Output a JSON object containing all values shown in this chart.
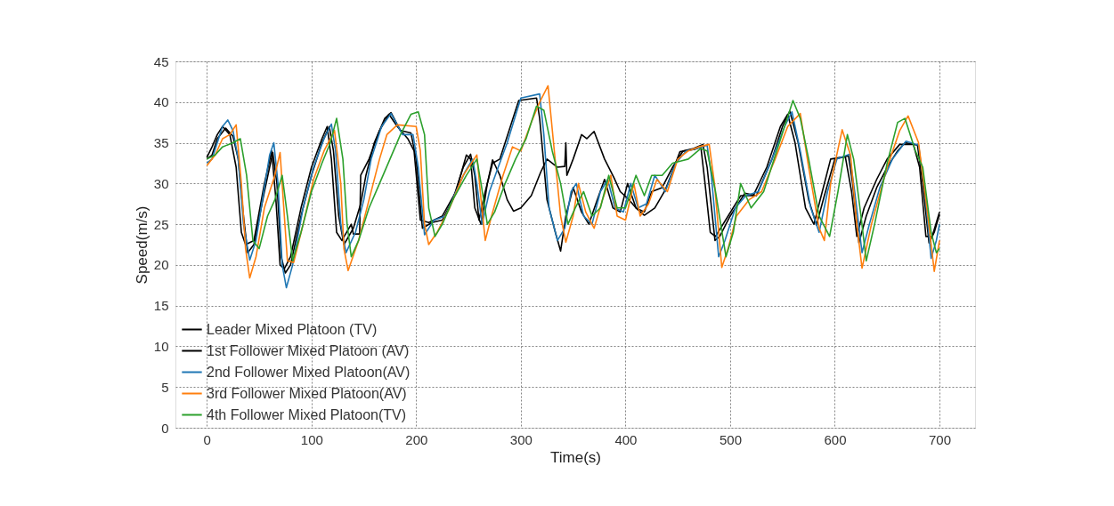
{
  "chart_data": {
    "type": "line",
    "xlabel": "Time(s)",
    "ylabel": "Speed(m/s)",
    "xlim": [
      -30,
      734
    ],
    "ylim": [
      0,
      45
    ],
    "xticks": [
      0,
      100,
      200,
      300,
      400,
      500,
      600,
      700
    ],
    "yticks": [
      0,
      5,
      10,
      15,
      20,
      25,
      30,
      35,
      40,
      45
    ],
    "grid": true,
    "legend": "bottom left",
    "line_style": "solid",
    "series": [
      {
        "name": "Leader Mixed Platoon (TV)",
        "color": "#000000",
        "x": [
          0,
          5,
          10,
          15,
          22,
          28,
          33,
          37,
          45,
          55,
          62,
          66,
          70,
          74,
          80,
          90,
          100,
          110,
          115,
          119,
          124,
          129,
          138,
          140,
          146,
          147,
          155,
          165,
          174,
          182,
          192,
          198,
          204,
          212,
          225,
          238,
          248,
          252,
          256,
          262,
          268,
          273,
          280,
          287,
          293,
          300,
          310,
          319,
          325,
          335,
          342,
          343,
          344,
          350,
          358,
          363,
          370,
          380,
          389,
          395,
          402,
          410,
          418,
          428,
          438,
          445,
          452,
          466,
          472,
          476,
          481,
          486,
          498,
          510,
          522,
          535,
          548,
          555,
          562,
          572,
          580,
          588,
          596,
          610,
          616,
          621,
          628,
          640,
          650,
          662,
          675,
          681,
          687,
          693,
          700
        ],
        "values": [
          33.2,
          34.5,
          36,
          37,
          36,
          32,
          24,
          22.5,
          23,
          30,
          34,
          28,
          20,
          19.5,
          21,
          27,
          32,
          35.5,
          37,
          33,
          24,
          23,
          25,
          23.8,
          23.8,
          31,
          33,
          36.5,
          38.5,
          37,
          35.5,
          34,
          25.5,
          25.2,
          26,
          29,
          33.5,
          33,
          27,
          25,
          30,
          32.9,
          31,
          28,
          26.6,
          27,
          28.5,
          31.4,
          33,
          32,
          32.1,
          35,
          31,
          33,
          36,
          35.5,
          36.4,
          33,
          30.7,
          29,
          28.2,
          27,
          26.1,
          27,
          29.2,
          31.5,
          33.9,
          34.2,
          34.5,
          30,
          24,
          23.5,
          26,
          28.5,
          28.5,
          32,
          37,
          38.5,
          35,
          27,
          25,
          29,
          33,
          33.3,
          29,
          23.5,
          27,
          30.5,
          33,
          34.8,
          34.8,
          32,
          23.5,
          23.5,
          26.5
        ]
      },
      {
        "name": "1st Follower Mixed Platoon (AV)",
        "color": "#000000",
        "x": [
          0,
          5,
          10,
          18,
          25,
          30,
          35,
          39,
          45,
          55,
          63,
          67,
          71,
          75,
          80,
          90,
          100,
          110,
          117,
          121,
          126,
          131,
          140,
          147,
          152,
          160,
          170,
          176,
          185,
          195,
          200,
          206,
          215,
          225,
          235,
          245,
          252,
          256,
          260,
          266,
          273,
          280,
          290,
          298,
          315,
          318,
          325,
          333,
          338,
          343,
          350,
          358,
          365,
          373,
          380,
          388,
          395,
          402,
          410,
          418,
          425,
          435,
          445,
          455,
          465,
          474,
          478,
          485.5,
          490,
          500,
          514,
          525,
          540,
          550,
          557,
          565,
          575,
          582.5,
          590,
          600,
          613,
          617,
          623,
          630,
          640,
          651,
          660,
          667,
          679,
          684,
          690,
          695,
          700
        ],
        "values": [
          33,
          33.5,
          35.5,
          36.8,
          35.8,
          33,
          26,
          21.5,
          22.5,
          29,
          33.8,
          30,
          21,
          19,
          20,
          26,
          31,
          35,
          37,
          34,
          26,
          22.5,
          24.5,
          27.5,
          31,
          35,
          38,
          38.7,
          36.5,
          36.2,
          33,
          24.5,
          25.2,
          25.5,
          28,
          32,
          33.6,
          31,
          25.5,
          29,
          32.5,
          33,
          37,
          40.2,
          40.5,
          38,
          28,
          24,
          21.7,
          26,
          29.5,
          26.5,
          25,
          28,
          30.5,
          27,
          26.5,
          30,
          27,
          26.5,
          29,
          29.5,
          32,
          34,
          34.3,
          34.8,
          32,
          23,
          23.5,
          26,
          28.8,
          28.5,
          33,
          37,
          38.9,
          35,
          28,
          24.9,
          28.5,
          33,
          33.4,
          30,
          22.7,
          26,
          29.5,
          32.2,
          34,
          35,
          34.7,
          30,
          22.7,
          24,
          26.2
        ]
      },
      {
        "name": "2nd Follower Mixed Platoon(AV)",
        "color": "#1f77b4",
        "x": [
          0,
          5,
          10,
          15,
          20,
          25,
          30,
          35,
          41,
          47,
          55,
          60,
          64,
          68,
          72,
          76,
          82,
          92,
          102,
          112,
          119,
          123,
          128,
          133,
          142,
          150,
          157,
          167,
          176,
          187,
          197,
          202,
          208,
          217,
          228,
          238,
          247,
          254,
          258,
          263,
          270,
          277,
          287,
          300,
          318,
          322,
          327,
          335,
          342,
          348,
          353,
          360,
          368,
          376,
          383,
          390,
          398,
          405,
          412,
          420,
          428,
          438,
          448,
          458,
          468,
          478,
          482,
          489,
          495,
          505,
          515,
          527,
          540,
          552,
          559,
          567,
          577,
          585,
          593,
          602,
          614,
          619,
          626,
          633,
          643,
          655,
          668,
          680,
          686,
          692,
          697,
          700
        ],
        "values": [
          32.5,
          33,
          35,
          37,
          37.8,
          36.5,
          33,
          25,
          20.6,
          23,
          29.5,
          33.5,
          35,
          30,
          20,
          17.2,
          20,
          27,
          32,
          35.5,
          37.3,
          34,
          25,
          21.5,
          24,
          28,
          33,
          37,
          38.6,
          36,
          36,
          32,
          23.7,
          25.5,
          26,
          29,
          31.5,
          33,
          30,
          25,
          29,
          31.5,
          35,
          40.5,
          41,
          36,
          27,
          23,
          24.5,
          29,
          30,
          26,
          25,
          29,
          30.5,
          27,
          26.5,
          30,
          27,
          27.5,
          31,
          29,
          32.5,
          34,
          34.3,
          34.7,
          31,
          21,
          23,
          27,
          28.5,
          29,
          33,
          37,
          38.8,
          34,
          27,
          24,
          29,
          33,
          33.6,
          29,
          21.5,
          25,
          29.5,
          33,
          35.2,
          34.7,
          29,
          20.8,
          23,
          25
        ]
      },
      {
        "name": "3rd Follower Mixed Platoon(AV)",
        "color": "#ff7f0e",
        "x": [
          0,
          8,
          15,
          22,
          28,
          33,
          37,
          41,
          47,
          55,
          65,
          70,
          73,
          77,
          83,
          92,
          102,
          112,
          122,
          128,
          131,
          135,
          145,
          155,
          165,
          172,
          182,
          200,
          204,
          208,
          212,
          220,
          232,
          245,
          258,
          262,
          266,
          272,
          283,
          292,
          300,
          310,
          318,
          326,
          332,
          338,
          343,
          350,
          355,
          362,
          370,
          378,
          386,
          392,
          400,
          408,
          414,
          422,
          430,
          440,
          450,
          460,
          470,
          480,
          485,
          492,
          498,
          506,
          518,
          530,
          543,
          555,
          567,
          575,
          585,
          590,
          596,
          607,
          615,
          621,
          626,
          635,
          650,
          662,
          670,
          680,
          688,
          695,
          700
        ],
        "values": [
          32.2,
          33.5,
          35.5,
          36,
          37.2,
          30,
          22,
          18.4,
          21,
          27,
          31,
          33.8,
          28,
          20.5,
          20.3,
          25,
          30.5,
          34,
          36.5,
          30,
          22,
          19.3,
          23,
          28,
          33,
          36,
          37.2,
          37,
          34,
          25,
          22.5,
          24,
          27,
          31,
          33.5,
          28,
          23,
          26,
          31,
          34.5,
          34,
          37.5,
          40,
          42,
          34,
          26,
          22.8,
          26,
          30,
          26.5,
          24.5,
          28,
          31,
          26,
          25.5,
          30,
          26,
          27.5,
          30.5,
          29,
          33,
          34,
          34.5,
          34.8,
          30,
          19.7,
          22,
          26,
          28,
          29,
          33,
          37,
          38.6,
          32,
          24.5,
          23,
          30,
          36.6,
          33.5,
          25,
          19.6,
          25,
          32,
          36.5,
          38.3,
          35,
          27,
          19.2,
          23
        ]
      },
      {
        "name": "4th Follower Mixed Platoon(TV)",
        "color": "#2ca02c",
        "x": [
          0,
          8,
          15,
          25,
          32,
          38,
          44,
          50,
          58,
          65,
          72,
          77,
          82,
          90,
          100,
          110,
          118,
          124,
          130,
          134,
          138,
          145,
          155,
          165,
          175,
          185,
          195,
          202,
          208,
          212,
          218,
          225,
          235,
          248,
          258,
          262,
          268,
          275,
          285,
          295,
          305,
          315,
          322,
          330,
          338,
          345,
          352,
          360,
          368,
          376,
          384,
          392,
          400,
          410,
          418,
          425,
          435,
          445,
          460,
          472,
          478,
          486,
          491,
          496,
          503,
          510,
          520,
          532,
          542,
          552,
          560,
          567,
          575,
          585,
          595,
          603,
          612,
          618,
          625,
          630,
          638,
          650,
          660,
          667,
          677,
          684,
          692,
          697,
          700
        ],
        "values": [
          33,
          33.5,
          34.5,
          35,
          35.5,
          31,
          23,
          22,
          26,
          28,
          31,
          26,
          20.5,
          24,
          29,
          32.5,
          35,
          38,
          33,
          25,
          21,
          23,
          27,
          30,
          33,
          36,
          38.5,
          38.8,
          36,
          27,
          23.5,
          25,
          28,
          31,
          33,
          30,
          25,
          26.5,
          30,
          33,
          35.5,
          39.5,
          39,
          34,
          30,
          25,
          27,
          29,
          26,
          27,
          31,
          27,
          27,
          31,
          28.5,
          31,
          31,
          32.5,
          33,
          34.3,
          34,
          29,
          25,
          21,
          24,
          30,
          27,
          29,
          33,
          37,
          40.2,
          38,
          33,
          26,
          23.5,
          29,
          36,
          33,
          26,
          20.5,
          25,
          32.5,
          37.5,
          38,
          34,
          32,
          24,
          21.5,
          22
        ]
      }
    ]
  }
}
